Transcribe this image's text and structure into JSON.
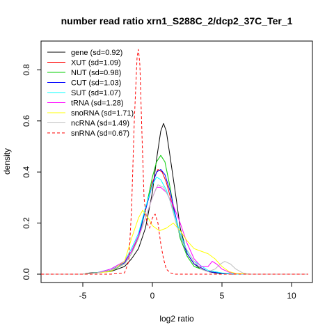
{
  "chart_data": {
    "type": "line",
    "title": "number read ratio xrn1_S288C_2/dcp2_37C_Ter_1",
    "xlabel": "log2 ratio",
    "ylabel": "density",
    "xlim": [
      -8,
      11.5
    ],
    "ylim": [
      0,
      0.88
    ],
    "x_ticks": [
      -5,
      0,
      5,
      10
    ],
    "x_tick_labels": [
      "-5",
      "0",
      "5",
      "10"
    ],
    "y_ticks": [
      0.0,
      0.2,
      0.4,
      0.6,
      0.8
    ],
    "y_tick_labels": [
      "0.0",
      "0.2",
      "0.4",
      "0.6",
      "0.8"
    ],
    "grid": false,
    "legend_position": "top-left",
    "series": [
      {
        "name": "gene (sd=0.92)",
        "color": "#000000",
        "dash": "solid",
        "points": [
          [
            -8,
            0
          ],
          [
            -5,
            0
          ],
          [
            -4.5,
            0.005
          ],
          [
            -3,
            0.01
          ],
          [
            -2,
            0.03
          ],
          [
            -1.5,
            0.06
          ],
          [
            -1,
            0.1
          ],
          [
            -0.5,
            0.18
          ],
          [
            0,
            0.32
          ],
          [
            0.3,
            0.45
          ],
          [
            0.6,
            0.56
          ],
          [
            0.8,
            0.59
          ],
          [
            1,
            0.56
          ],
          [
            1.3,
            0.45
          ],
          [
            1.7,
            0.3
          ],
          [
            2,
            0.18
          ],
          [
            2.5,
            0.08
          ],
          [
            3,
            0.04
          ],
          [
            3.5,
            0.02
          ],
          [
            4,
            0.01
          ],
          [
            4.5,
            0.005
          ],
          [
            5,
            0.002
          ],
          [
            6,
            0
          ],
          [
            11.2,
            0
          ]
        ]
      },
      {
        "name": "XUT (sd=1.09)",
        "color": "#ff0000",
        "dash": "solid",
        "points": [
          [
            -8,
            0
          ],
          [
            -5,
            0
          ],
          [
            -4,
            0.005
          ],
          [
            -3,
            0.015
          ],
          [
            -2,
            0.04
          ],
          [
            -1.5,
            0.08
          ],
          [
            -1,
            0.15
          ],
          [
            -0.5,
            0.25
          ],
          [
            0,
            0.36
          ],
          [
            0.4,
            0.41
          ],
          [
            0.7,
            0.4
          ],
          [
            1,
            0.36
          ],
          [
            1.5,
            0.26
          ],
          [
            2,
            0.15
          ],
          [
            2.5,
            0.08
          ],
          [
            3,
            0.04
          ],
          [
            4,
            0.01
          ],
          [
            5,
            0.003
          ],
          [
            6,
            0
          ],
          [
            11.2,
            0
          ]
        ]
      },
      {
        "name": "NUT (sd=0.98)",
        "color": "#00cc00",
        "dash": "solid",
        "points": [
          [
            -8,
            0
          ],
          [
            -5,
            0
          ],
          [
            -4,
            0.005
          ],
          [
            -3,
            0.012
          ],
          [
            -2,
            0.04
          ],
          [
            -1.5,
            0.08
          ],
          [
            -1,
            0.14
          ],
          [
            -0.5,
            0.25
          ],
          [
            0,
            0.38
          ],
          [
            0.3,
            0.44
          ],
          [
            0.6,
            0.465
          ],
          [
            0.9,
            0.44
          ],
          [
            1.2,
            0.36
          ],
          [
            1.6,
            0.24
          ],
          [
            2,
            0.14
          ],
          [
            2.5,
            0.07
          ],
          [
            3,
            0.03
          ],
          [
            4,
            0.01
          ],
          [
            5,
            0.003
          ],
          [
            6,
            0
          ],
          [
            11.2,
            0
          ]
        ]
      },
      {
        "name": "CUT (sd=1.03)",
        "color": "#0000ff",
        "dash": "solid",
        "points": [
          [
            -8,
            0
          ],
          [
            -5,
            0
          ],
          [
            -4,
            0.005
          ],
          [
            -3,
            0.015
          ],
          [
            -2,
            0.045
          ],
          [
            -1.5,
            0.09
          ],
          [
            -1,
            0.15
          ],
          [
            -0.5,
            0.25
          ],
          [
            0,
            0.35
          ],
          [
            0.3,
            0.4
          ],
          [
            0.6,
            0.41
          ],
          [
            0.9,
            0.39
          ],
          [
            1.3,
            0.32
          ],
          [
            1.7,
            0.22
          ],
          [
            2,
            0.15
          ],
          [
            2.5,
            0.08
          ],
          [
            3,
            0.04
          ],
          [
            4,
            0.01
          ],
          [
            5,
            0.003
          ],
          [
            6,
            0
          ],
          [
            11.2,
            0
          ]
        ]
      },
      {
        "name": "SUT (sd=1.07)",
        "color": "#00ffff",
        "dash": "solid",
        "points": [
          [
            -8,
            0
          ],
          [
            -5,
            0
          ],
          [
            -4,
            0.006
          ],
          [
            -3,
            0.02
          ],
          [
            -2,
            0.05
          ],
          [
            -1.5,
            0.1
          ],
          [
            -1,
            0.16
          ],
          [
            -0.5,
            0.26
          ],
          [
            0,
            0.35
          ],
          [
            0.3,
            0.38
          ],
          [
            0.6,
            0.37
          ],
          [
            1,
            0.33
          ],
          [
            1.5,
            0.25
          ],
          [
            2,
            0.16
          ],
          [
            2.5,
            0.09
          ],
          [
            3,
            0.05
          ],
          [
            4,
            0.015
          ],
          [
            5,
            0.005
          ],
          [
            6,
            0
          ],
          [
            11.2,
            0
          ]
        ]
      },
      {
        "name": "tRNA (sd=1.28)",
        "color": "#ff00ff",
        "dash": "solid",
        "points": [
          [
            -8,
            0
          ],
          [
            -5,
            0
          ],
          [
            -4,
            0.005
          ],
          [
            -3,
            0.02
          ],
          [
            -2,
            0.05
          ],
          [
            -1.5,
            0.09
          ],
          [
            -1,
            0.15
          ],
          [
            -0.5,
            0.22
          ],
          [
            0,
            0.3
          ],
          [
            0.3,
            0.34
          ],
          [
            0.6,
            0.34
          ],
          [
            1,
            0.32
          ],
          [
            1.5,
            0.27
          ],
          [
            2,
            0.2
          ],
          [
            2.5,
            0.12
          ],
          [
            3,
            0.06
          ],
          [
            3.5,
            0.03
          ],
          [
            4,
            0.03
          ],
          [
            4.3,
            0.05
          ],
          [
            4.6,
            0.04
          ],
          [
            5,
            0.02
          ],
          [
            5.5,
            0.008
          ],
          [
            6,
            0.002
          ],
          [
            7,
            0
          ],
          [
            11.2,
            0
          ]
        ]
      },
      {
        "name": "snoRNA (sd=1.71)",
        "color": "#ffff00",
        "dash": "solid",
        "points": [
          [
            -8,
            0
          ],
          [
            -5,
            0
          ],
          [
            -3,
            0.01
          ],
          [
            -2,
            0.05
          ],
          [
            -1.5,
            0.14
          ],
          [
            -1,
            0.22
          ],
          [
            -0.7,
            0.25
          ],
          [
            -0.3,
            0.22
          ],
          [
            0,
            0.19
          ],
          [
            0.5,
            0.17
          ],
          [
            1,
            0.18
          ],
          [
            1.5,
            0.2
          ],
          [
            2,
            0.17
          ],
          [
            2.5,
            0.13
          ],
          [
            3,
            0.1
          ],
          [
            3.5,
            0.09
          ],
          [
            4,
            0.08
          ],
          [
            4.5,
            0.06
          ],
          [
            5,
            0.03
          ],
          [
            5.5,
            0.01
          ],
          [
            6,
            0.003
          ],
          [
            7,
            0
          ],
          [
            11.2,
            0
          ]
        ]
      },
      {
        "name": "ncRNA (sd=1.49)",
        "color": "#bebebe",
        "dash": "solid",
        "points": [
          [
            -8,
            0
          ],
          [
            -5,
            0
          ],
          [
            -4,
            0.005
          ],
          [
            -3,
            0.015
          ],
          [
            -2,
            0.04
          ],
          [
            -1.5,
            0.08
          ],
          [
            -1,
            0.14
          ],
          [
            -0.5,
            0.22
          ],
          [
            0,
            0.3
          ],
          [
            0.4,
            0.35
          ],
          [
            0.8,
            0.34
          ],
          [
            1.2,
            0.3
          ],
          [
            1.7,
            0.2
          ],
          [
            2.2,
            0.12
          ],
          [
            3,
            0.05
          ],
          [
            3.5,
            0.02
          ],
          [
            4,
            0.01
          ],
          [
            4.5,
            0.02
          ],
          [
            4.9,
            0.04
          ],
          [
            5.2,
            0.05
          ],
          [
            5.6,
            0.04
          ],
          [
            6,
            0.02
          ],
          [
            6.5,
            0.005
          ],
          [
            7,
            0
          ],
          [
            11.2,
            0
          ]
        ]
      },
      {
        "name": "snRNA (sd=0.67)",
        "color": "#ff0000",
        "dash": "dashed",
        "points": [
          [
            -8,
            0
          ],
          [
            -3,
            0
          ],
          [
            -2,
            0.005
          ],
          [
            -1.7,
            0.05
          ],
          [
            -1.5,
            0.25
          ],
          [
            -1.3,
            0.6
          ],
          [
            -1.1,
            0.85
          ],
          [
            -1,
            0.88
          ],
          [
            -0.9,
            0.82
          ],
          [
            -0.75,
            0.55
          ],
          [
            -0.6,
            0.3
          ],
          [
            -0.4,
            0.2
          ],
          [
            -0.2,
            0.18
          ],
          [
            0,
            0.22
          ],
          [
            0.2,
            0.235
          ],
          [
            0.4,
            0.2
          ],
          [
            0.6,
            0.12
          ],
          [
            0.8,
            0.06
          ],
          [
            1,
            0.02
          ],
          [
            1.3,
            0.005
          ],
          [
            1.6,
            0
          ],
          [
            11.2,
            0
          ]
        ]
      }
    ]
  }
}
